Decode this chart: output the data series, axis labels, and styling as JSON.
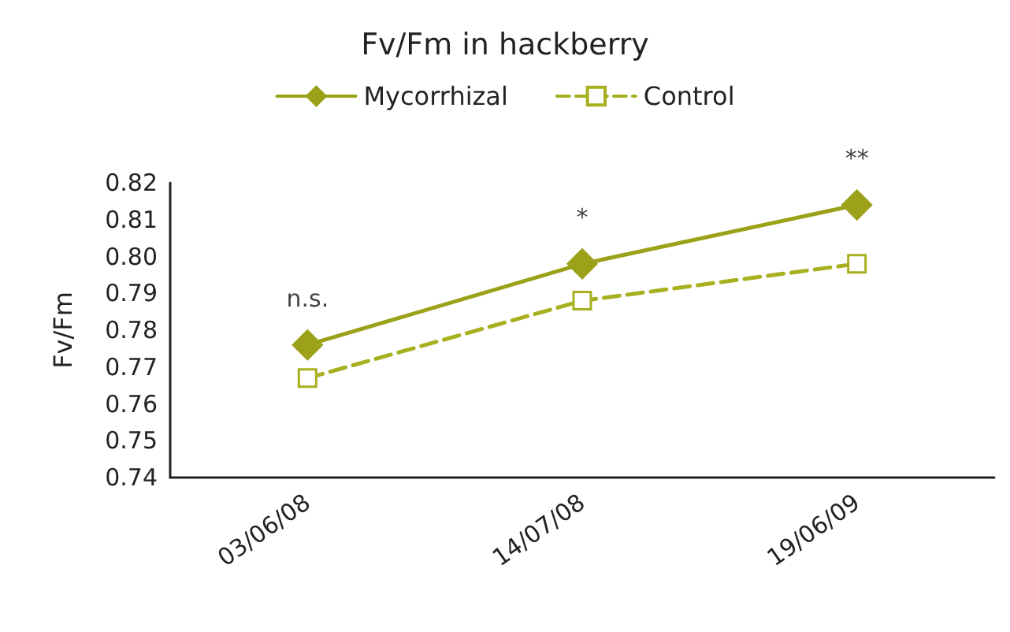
{
  "chart_data": {
    "type": "line",
    "title": "Fv/Fm in hackberry",
    "ylabel": "Fv/Fm",
    "categories": [
      "03/06/08",
      "14/07/08",
      "19/06/09"
    ],
    "series": [
      {
        "name": "Mycorrhizal",
        "color": "#9ba118",
        "values": [
          0.776,
          0.798,
          0.814
        ],
        "marker": "diamond",
        "line_style": "solid"
      },
      {
        "name": "Control",
        "color": "#a8b020",
        "values": [
          0.767,
          0.788,
          0.798
        ],
        "marker": "square",
        "line_style": "dashed"
      }
    ],
    "ylim": [
      0.74,
      0.82
    ],
    "yticks": [
      0.74,
      0.75,
      0.76,
      0.77,
      0.78,
      0.79,
      {
        "value": 0.8,
        "label": "0.80"
      },
      0.81,
      0.82
    ],
    "grid": false,
    "legend": "top",
    "annotations": [
      {
        "text": "n.s.",
        "x": "03/06/08",
        "y": 0.776
      },
      {
        "text": "*",
        "x": "14/07/08",
        "y": 0.798
      },
      {
        "text": "**",
        "x": "19/06/09",
        "y": 0.814
      }
    ]
  }
}
